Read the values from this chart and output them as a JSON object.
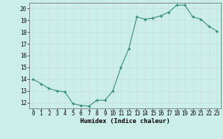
{
  "x": [
    0,
    1,
    2,
    3,
    4,
    5,
    6,
    7,
    8,
    9,
    10,
    11,
    12,
    13,
    14,
    15,
    16,
    17,
    18,
    19,
    20,
    21,
    22,
    23
  ],
  "y": [
    14.0,
    13.6,
    13.2,
    13.0,
    12.9,
    11.9,
    11.75,
    11.7,
    12.2,
    12.2,
    13.0,
    15.0,
    16.6,
    19.3,
    19.1,
    19.2,
    19.4,
    19.7,
    20.3,
    20.3,
    19.3,
    19.1,
    18.5,
    18.1
  ],
  "xlabel": "Humidex (Indice chaleur)",
  "xlim": [
    -0.5,
    23.5
  ],
  "ylim": [
    11.5,
    20.5
  ],
  "yticks": [
    12,
    13,
    14,
    15,
    16,
    17,
    18,
    19,
    20
  ],
  "xticks": [
    0,
    1,
    2,
    3,
    4,
    5,
    6,
    7,
    8,
    9,
    10,
    11,
    12,
    13,
    14,
    15,
    16,
    17,
    18,
    19,
    20,
    21,
    22,
    23
  ],
  "line_color": "#2e8b74",
  "marker_color": "#2e8b74",
  "bg_color": "#cceee8",
  "grid_color": "#c8ddd9",
  "label_fontsize": 6.5,
  "tick_fontsize": 5.5
}
